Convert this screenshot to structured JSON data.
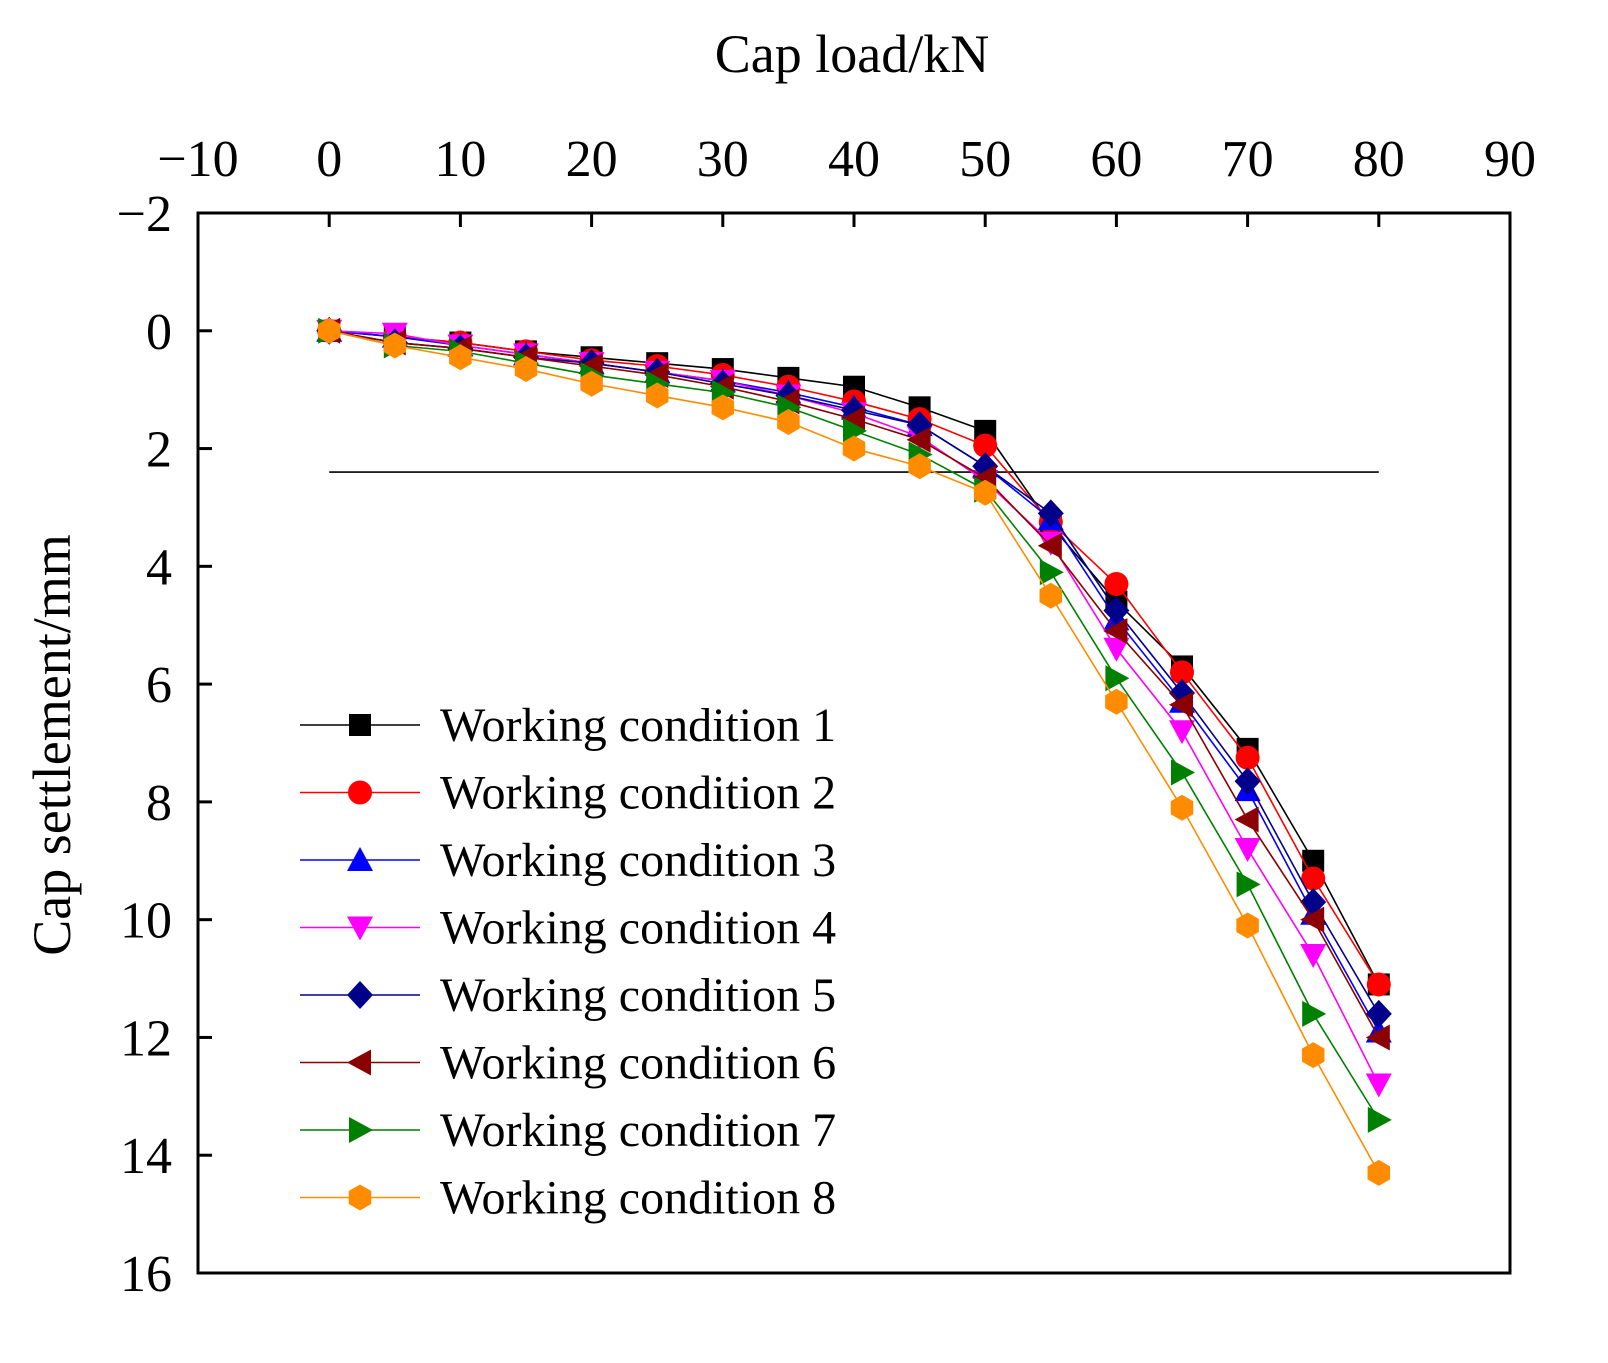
{
  "chart_data": {
    "type": "line",
    "title": "",
    "xlabel": "Cap load/kN",
    "ylabel": "Cap settlement/mm",
    "xlim": [
      -10,
      90
    ],
    "ylim": [
      -2,
      16
    ],
    "y_inverted": true,
    "x_axis_position": "top",
    "x_ticks": [
      -10,
      0,
      10,
      20,
      30,
      40,
      50,
      60,
      70,
      80,
      90
    ],
    "x_tick_labels": [
      "−10",
      "0",
      "10",
      "20",
      "30",
      "40",
      "50",
      "60",
      "70",
      "80",
      "90"
    ],
    "y_ticks": [
      -2,
      0,
      2,
      4,
      6,
      8,
      10,
      12,
      14,
      16
    ],
    "y_tick_labels": [
      "−2",
      "0",
      "2",
      "4",
      "6",
      "8",
      "10",
      "12",
      "14",
      "16"
    ],
    "grid": false,
    "legend_position": "bottom-left",
    "x": [
      0,
      5,
      10,
      15,
      20,
      25,
      30,
      35,
      40,
      45,
      50,
      55,
      60,
      65,
      70,
      75,
      80
    ],
    "reference_line": {
      "y": 2.4,
      "x_range": [
        0,
        80
      ],
      "color": "#000000"
    },
    "series": [
      {
        "name": "Working condition 1",
        "color": "#000000",
        "marker": "square",
        "values": [
          0,
          0.1,
          0.2,
          0.35,
          0.45,
          0.55,
          0.65,
          0.8,
          0.95,
          1.3,
          1.7,
          3.3,
          4.6,
          5.7,
          7.1,
          9.0,
          11.1
        ]
      },
      {
        "name": "Working condition 2",
        "color": "#ff0000",
        "marker": "circle",
        "values": [
          0,
          0.1,
          0.2,
          0.35,
          0.5,
          0.6,
          0.75,
          0.95,
          1.2,
          1.5,
          1.95,
          3.25,
          4.3,
          5.8,
          7.25,
          9.3,
          11.1
        ]
      },
      {
        "name": "Working condition 3",
        "color": "#0000ff",
        "marker": "triangle-up",
        "values": [
          0,
          0.1,
          0.25,
          0.4,
          0.55,
          0.7,
          0.85,
          1.05,
          1.3,
          1.6,
          2.3,
          3.2,
          4.9,
          6.3,
          7.8,
          9.9,
          11.9
        ]
      },
      {
        "name": "Working condition 4",
        "color": "#ff00ff",
        "marker": "triangle-down",
        "values": [
          0,
          0.05,
          0.25,
          0.4,
          0.55,
          0.7,
          0.85,
          1.1,
          1.4,
          1.8,
          2.55,
          3.6,
          5.4,
          6.8,
          8.8,
          10.6,
          12.8
        ]
      },
      {
        "name": "Working condition 5",
        "color": "#00008b",
        "marker": "diamond",
        "values": [
          0,
          0.2,
          0.3,
          0.45,
          0.55,
          0.7,
          0.9,
          1.1,
          1.35,
          1.6,
          2.3,
          3.1,
          4.75,
          6.15,
          7.65,
          9.7,
          11.6
        ]
      },
      {
        "name": "Working condition 6",
        "color": "#8b0000",
        "marker": "triangle-left",
        "values": [
          0,
          0.2,
          0.3,
          0.45,
          0.6,
          0.75,
          0.95,
          1.2,
          1.5,
          1.85,
          2.5,
          3.65,
          5.1,
          6.35,
          8.3,
          10.0,
          12.0
        ]
      },
      {
        "name": "Working condition 7",
        "color": "#008000",
        "marker": "triangle-right",
        "values": [
          0,
          0.25,
          0.35,
          0.55,
          0.75,
          0.9,
          1.05,
          1.3,
          1.7,
          2.1,
          2.7,
          4.1,
          5.9,
          7.5,
          9.4,
          11.6,
          13.4
        ]
      },
      {
        "name": "Working condition 8",
        "color": "#ff8c00",
        "marker": "hexagon",
        "values": [
          0,
          0.25,
          0.45,
          0.65,
          0.9,
          1.1,
          1.3,
          1.55,
          2.0,
          2.3,
          2.75,
          4.5,
          6.3,
          8.1,
          10.1,
          12.3,
          14.3
        ]
      }
    ]
  }
}
